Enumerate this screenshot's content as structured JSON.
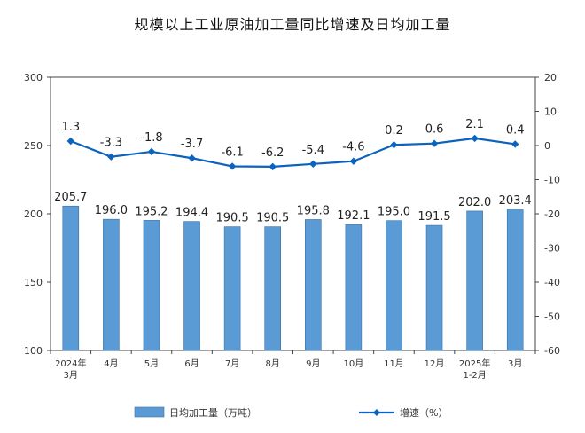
{
  "chart_data": {
    "type": "bar",
    "title": "规模以上工业原油加工量同比增速及日均加工量",
    "categories": [
      [
        "2024年",
        "3月"
      ],
      [
        "4月"
      ],
      [
        "5月"
      ],
      [
        "6月"
      ],
      [
        "7月"
      ],
      [
        "8月"
      ],
      [
        "9月"
      ],
      [
        "10月"
      ],
      [
        "11月"
      ],
      [
        "12月"
      ],
      [
        "2025年",
        "1-2月"
      ],
      [
        "3月"
      ]
    ],
    "series": [
      {
        "name": "日均加工量（万吨）",
        "type": "bar",
        "axis": "left",
        "color": "#5b9bd5",
        "values": [
          205.7,
          196.0,
          195.2,
          194.4,
          190.5,
          190.5,
          195.8,
          192.1,
          195.0,
          191.5,
          202.0,
          203.4
        ],
        "labels": [
          "205.7",
          "196.0",
          "195.2",
          "194.4",
          "190.5",
          "190.5",
          "195.8",
          "192.1",
          "195.0",
          "191.5",
          "202.0",
          "203.4"
        ]
      },
      {
        "name": "增速（%）",
        "type": "line",
        "axis": "right",
        "color": "#0b63bf",
        "values": [
          1.3,
          -3.3,
          -1.8,
          -3.7,
          -6.1,
          -6.2,
          -5.4,
          -4.6,
          0.2,
          0.6,
          2.1,
          0.4
        ],
        "labels": [
          "1.3",
          "-3.3",
          "-1.8",
          "-3.7",
          "-6.1",
          "-6.2",
          "-5.4",
          "-4.6",
          "0.2",
          "0.6",
          "2.1",
          "0.4"
        ]
      }
    ],
    "y_left": {
      "min": 100,
      "max": 300,
      "ticks": [
        100,
        150,
        200,
        250,
        300
      ]
    },
    "y_right": {
      "min": -60,
      "max": 20,
      "ticks": [
        -60,
        -50,
        -40,
        -30,
        -20,
        -10,
        0,
        10,
        20
      ]
    },
    "legend": {
      "position": "bottom"
    },
    "grid": false
  }
}
